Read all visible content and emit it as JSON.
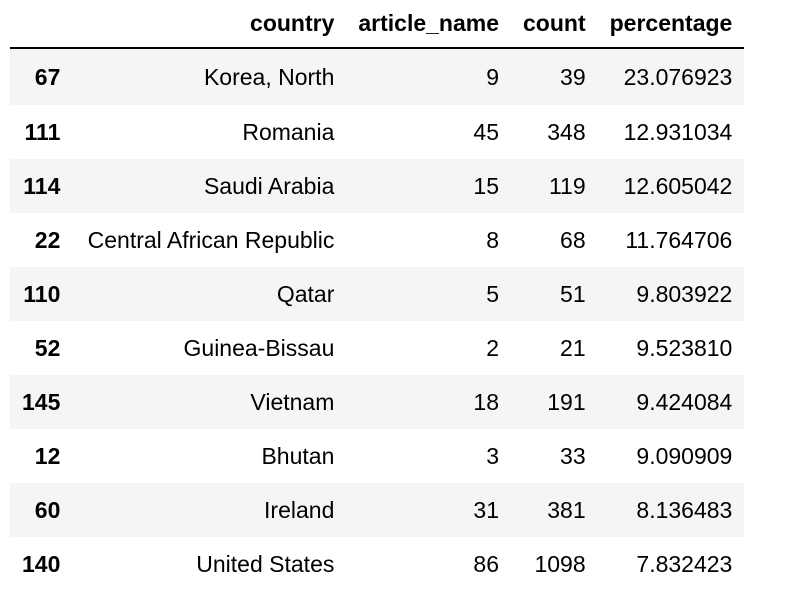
{
  "table": {
    "columns": [
      "",
      "country",
      "article_name",
      "count",
      "percentage"
    ],
    "rows": [
      {
        "index": "67",
        "country": "Korea, North",
        "article_name": "9",
        "count": "39",
        "percentage": "23.076923"
      },
      {
        "index": "111",
        "country": "Romania",
        "article_name": "45",
        "count": "348",
        "percentage": "12.931034"
      },
      {
        "index": "114",
        "country": "Saudi Arabia",
        "article_name": "15",
        "count": "119",
        "percentage": "12.605042"
      },
      {
        "index": "22",
        "country": "Central African Republic",
        "article_name": "8",
        "count": "68",
        "percentage": "11.764706"
      },
      {
        "index": "110",
        "country": "Qatar",
        "article_name": "5",
        "count": "51",
        "percentage": "9.803922"
      },
      {
        "index": "52",
        "country": "Guinea-Bissau",
        "article_name": "2",
        "count": "21",
        "percentage": "9.523810"
      },
      {
        "index": "145",
        "country": "Vietnam",
        "article_name": "18",
        "count": "191",
        "percentage": "9.424084"
      },
      {
        "index": "12",
        "country": "Bhutan",
        "article_name": "3",
        "count": "33",
        "percentage": "9.090909"
      },
      {
        "index": "60",
        "country": "Ireland",
        "article_name": "31",
        "count": "381",
        "percentage": "8.136483"
      },
      {
        "index": "140",
        "country": "United States",
        "article_name": "86",
        "count": "1098",
        "percentage": "7.832423"
      }
    ]
  },
  "colors": {
    "stripe": "#f5f5f5",
    "background": "#ffffff",
    "text": "#000000",
    "header_rule": "#000000"
  }
}
